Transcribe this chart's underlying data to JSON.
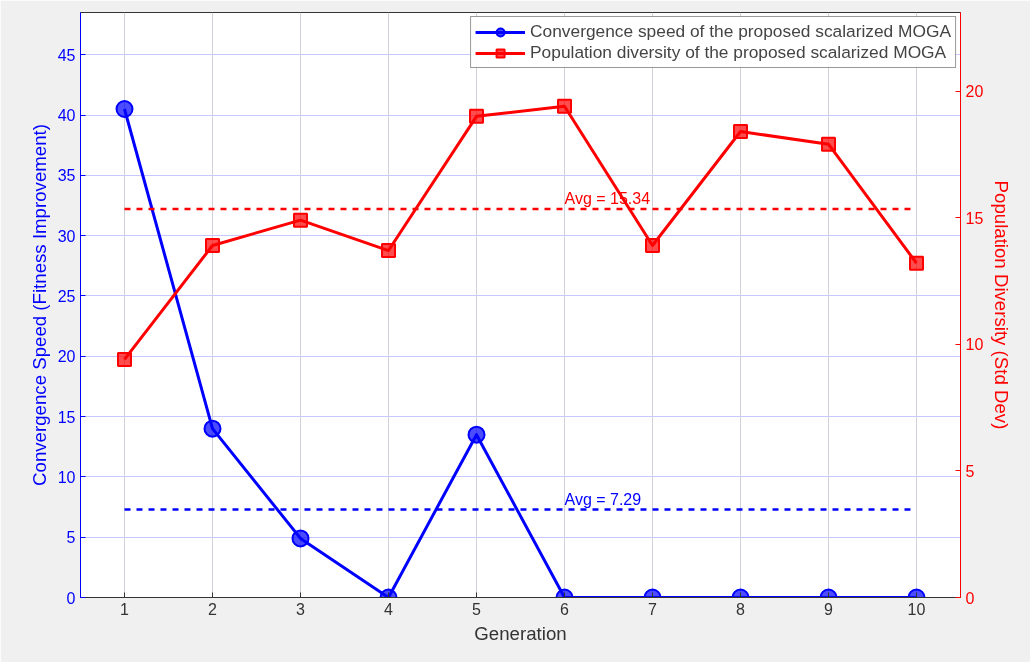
{
  "chart_data": {
    "type": "line",
    "xlabel": "Generation",
    "ylabel": "Convergence Speed (Fitness Improvement)",
    "y2label": "Population Diversity (Std Dev)",
    "x": [
      1,
      2,
      3,
      4,
      5,
      6,
      7,
      8,
      9,
      10
    ],
    "series": [
      {
        "name": "Convergence speed of the proposed scalarized MOGA",
        "color": "#0000ff",
        "marker": "circle",
        "values": [
          40.5,
          14,
          4.9,
          0,
          13.5,
          0,
          0,
          0,
          0,
          0
        ]
      },
      {
        "name": "Population diversity of the proposed scalarized MOGA",
        "color": "#ff0000",
        "marker": "square",
        "axis": "y2",
        "values": [
          9.4,
          13.9,
          14.9,
          13.7,
          19.0,
          19.4,
          13.9,
          18.4,
          17.9,
          13.2
        ]
      }
    ],
    "ref_lines": [
      {
        "axis": "y",
        "value": 7.29,
        "label": "Avg = 7.29",
        "color": "#0000ff",
        "line_style": "dashed"
      },
      {
        "axis": "y2",
        "value": 15.34,
        "label": "Avg = 15.34",
        "color": "#ff0000",
        "line_style": "dashed"
      }
    ],
    "xlim": [
      0.5,
      10.5
    ],
    "xticks": [
      1,
      2,
      3,
      4,
      5,
      6,
      7,
      8,
      9,
      10
    ],
    "ylim": [
      0,
      48.5
    ],
    "yticks": [
      0,
      5,
      10,
      15,
      20,
      25,
      30,
      35,
      40,
      45
    ],
    "y2lim": [
      0,
      23.1
    ],
    "y2ticks": [
      0,
      5,
      10,
      15,
      20
    ],
    "grid": true,
    "legend": "top right",
    "line_style": "solid"
  }
}
